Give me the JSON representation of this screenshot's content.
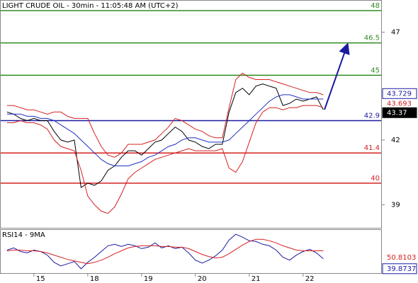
{
  "chart_data": [
    {
      "type": "line",
      "title": "LIGHT CRUDE OIL - 30min - 11:05:48 AM (UTC+2)",
      "x": [
        -0.5,
        -0.375,
        -0.25,
        -0.125,
        0,
        0.125,
        0.25,
        0.375,
        0.5,
        0.625,
        0.75,
        0.875,
        1,
        1.125,
        1.25,
        1.375,
        1.5,
        1.625,
        1.75,
        1.875,
        2,
        2.125,
        2.25,
        2.375,
        2.5,
        2.625,
        2.75,
        2.875,
        3,
        3.125,
        3.25,
        3.375,
        3.5,
        3.625,
        3.75,
        3.875,
        4,
        4.125,
        4.25,
        4.375,
        4.5,
        4.625,
        4.75,
        4.875,
        5,
        5.125,
        5.25,
        5.375
      ],
      "xlim": [
        -0.63,
        6.45
      ],
      "xticks": [
        {
          "value": 0,
          "label": "15"
        },
        {
          "value": 1,
          "label": "18"
        },
        {
          "value": 2,
          "label": "19"
        },
        {
          "value": 3,
          "label": "20"
        },
        {
          "value": 4,
          "label": "21"
        },
        {
          "value": 5,
          "label": "22"
        }
      ],
      "ylim": [
        37.93,
        48.49
      ],
      "yticks": [
        47,
        42,
        39
      ],
      "series": [
        {
          "color": "#000000",
          "values": [
            43.3,
            43.2,
            43.0,
            42.9,
            43.0,
            42.9,
            42.9,
            42.4,
            42.0,
            41.9,
            42.0,
            39.8,
            40.0,
            39.9,
            40.1,
            40.6,
            40.8,
            41.2,
            41.5,
            41.5,
            41.3,
            41.6,
            41.9,
            42.0,
            42.3,
            42.6,
            42.4,
            42.0,
            41.9,
            41.7,
            41.6,
            41.8,
            41.8,
            43.3,
            44.2,
            44.4,
            44.1,
            44.5,
            44.6,
            44.5,
            44.4,
            43.6,
            43.7,
            43.9,
            43.8,
            43.9,
            44.0,
            43.4
          ]
        },
        {
          "color": "#d42020",
          "values": [
            43.6,
            43.6,
            43.5,
            43.4,
            43.4,
            43.3,
            43.2,
            43.3,
            43.3,
            43.1,
            43.0,
            43.0,
            43.0,
            42.3,
            41.7,
            41.3,
            41.2,
            41.4,
            41.8,
            41.8,
            41.8,
            41.9,
            42.0,
            42.3,
            42.6,
            43.0,
            42.9,
            42.7,
            42.5,
            42.4,
            42.2,
            42.1,
            42.1,
            43.5,
            44.8,
            45.1,
            44.9,
            44.8,
            44.8,
            44.8,
            44.7,
            44.6,
            44.5,
            44.4,
            44.3,
            44.2,
            44.2,
            44.1
          ]
        },
        {
          "color": "#d42020",
          "values": [
            42.8,
            42.8,
            42.9,
            42.8,
            42.8,
            42.7,
            42.5,
            42.0,
            41.7,
            41.6,
            41.5,
            40.6,
            39.4,
            39.0,
            38.7,
            38.6,
            38.9,
            39.5,
            40.2,
            40.5,
            40.7,
            40.9,
            41.1,
            41.2,
            41.3,
            41.4,
            41.5,
            41.6,
            41.5,
            41.5,
            41.5,
            41.5,
            41.6,
            40.7,
            40.5,
            41.0,
            41.9,
            42.8,
            43.3,
            43.5,
            43.5,
            43.4,
            43.5,
            43.5,
            43.6,
            43.6,
            43.6,
            43.5
          ]
        },
        {
          "color": "#2030c0",
          "values": [
            43.2,
            43.2,
            43.2,
            43.1,
            43.1,
            43.0,
            43.0,
            42.9,
            42.7,
            42.5,
            42.3,
            42.0,
            41.7,
            41.4,
            41.1,
            40.9,
            40.8,
            40.8,
            40.8,
            40.9,
            41.0,
            41.2,
            41.3,
            41.5,
            41.7,
            41.8,
            42.0,
            42.1,
            42.1,
            42.0,
            41.9,
            41.9,
            41.9,
            42.0,
            42.3,
            42.6,
            42.9,
            43.2,
            43.5,
            43.8,
            44.0,
            44.1,
            44.1,
            44.0,
            43.9,
            43.9,
            43.9,
            43.9
          ]
        }
      ],
      "levels": [
        {
          "value": 48,
          "color": "#2e8b20"
        },
        {
          "value": 46.5,
          "color": "#2e8b20"
        },
        {
          "value": 45,
          "color": "#2e8b20"
        },
        {
          "value": 42.9,
          "color": "#1a1aa0"
        },
        {
          "value": 41.4,
          "color": "#d42020"
        },
        {
          "value": 40,
          "color": "#d42020"
        }
      ],
      "markers": [
        {
          "value": 43.729,
          "color": "#1a1aa0",
          "style": "outline"
        },
        {
          "value": 43.693,
          "color": "#d42020",
          "style": "plain"
        },
        {
          "value": 43.37,
          "color": "#000000",
          "style": "solid"
        }
      ]
    },
    {
      "type": "line",
      "title": "RSI14 - 9MA",
      "ylim": [
        20,
        80
      ],
      "series": [
        {
          "color": "#1a1aa0",
          "values": [
            52,
            55,
            50,
            48,
            52,
            50,
            45,
            35,
            30,
            33,
            36,
            26,
            35,
            42,
            50,
            58,
            60,
            57,
            60,
            58,
            54,
            56,
            62,
            55,
            58,
            54,
            56,
            48,
            38,
            34,
            38,
            44,
            52,
            66,
            74,
            70,
            65,
            64,
            60,
            58,
            52,
            42,
            38,
            45,
            50,
            53,
            48,
            40
          ]
        },
        {
          "color": "#d42020",
          "values": [
            51,
            52,
            52,
            51,
            51,
            50,
            48,
            45,
            42,
            39,
            37,
            35,
            33,
            35,
            38,
            42,
            47,
            51,
            55,
            57,
            58,
            58,
            58,
            57,
            57,
            56,
            56,
            54,
            50,
            46,
            43,
            41,
            42,
            47,
            53,
            59,
            64,
            67,
            67,
            65,
            62,
            58,
            55,
            52,
            51,
            51,
            51,
            51
          ]
        }
      ],
      "markers": [
        {
          "value": 50.8103,
          "color": "#d42020",
          "style": "plain"
        },
        {
          "value": 39.8737,
          "color": "#1a1aa0",
          "style": "outline"
        }
      ]
    }
  ]
}
